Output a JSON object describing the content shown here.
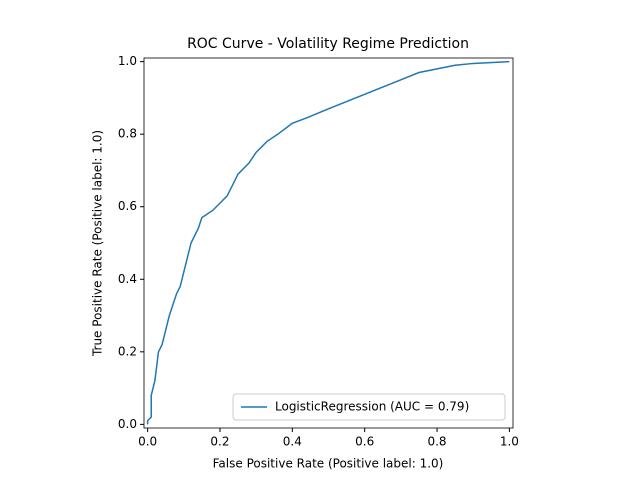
{
  "chart_data": {
    "type": "line",
    "title": "ROC Curve - Volatility Regime Prediction",
    "x_label": "False Positive Rate (Positive label: 1.0)",
    "y_label": "True Positive Rate (Positive label: 1.0)",
    "x": [
      0,
      0,
      0.01,
      0.01,
      0.02,
      0.03,
      0.04,
      0.05,
      0.06,
      0.07,
      0.08,
      0.09,
      0.1,
      0.11,
      0.12,
      0.14,
      0.15,
      0.18,
      0.2,
      0.22,
      0.24,
      0.25,
      0.28,
      0.3,
      0.33,
      0.36,
      0.4,
      0.44,
      0.5,
      0.55,
      0.6,
      0.65,
      0.7,
      0.75,
      0.8,
      0.85,
      0.9,
      1
    ],
    "series": [
      {
        "name": "LogisticRegression (AUC = 0.79)",
        "color": "#1f77b4",
        "values": [
          0,
          0.01,
          0.02,
          0.08,
          0.12,
          0.2,
          0.22,
          0.26,
          0.3,
          0.33,
          0.36,
          0.38,
          0.42,
          0.46,
          0.5,
          0.54,
          0.57,
          0.59,
          0.61,
          0.63,
          0.67,
          0.69,
          0.72,
          0.75,
          0.78,
          0.8,
          0.83,
          0.845,
          0.87,
          0.89,
          0.91,
          0.93,
          0.95,
          0.97,
          0.98,
          0.99,
          0.995,
          1
        ]
      }
    ],
    "xlim": [
      -0.01,
      1.01
    ],
    "ylim": [
      -0.01,
      1.01
    ],
    "xticks": [
      {
        "value": 0,
        "label": "0.0"
      },
      0.2,
      0.4,
      0.6,
      0.8,
      {
        "value": 1,
        "label": "1.0"
      }
    ],
    "yticks": [
      {
        "value": 0,
        "label": "0.0"
      },
      0.2,
      0.4,
      0.6,
      0.8,
      {
        "value": 1,
        "label": "1.0"
      }
    ],
    "legend": "lower right"
  }
}
